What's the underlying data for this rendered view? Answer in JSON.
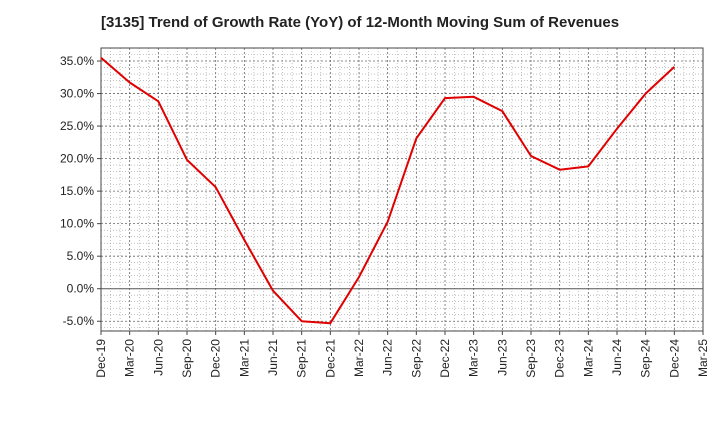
{
  "chart_data": {
    "type": "line",
    "title": "[3135]  Trend of Growth Rate (YoY) of 12-Month Moving Sum of Revenues",
    "xlabel": "",
    "ylabel": "",
    "x_ticks": [
      "Dec-19",
      "Mar-20",
      "Jun-20",
      "Sep-20",
      "Dec-20",
      "Mar-21",
      "Jun-21",
      "Sep-21",
      "Dec-21",
      "Mar-22",
      "Jun-22",
      "Sep-22",
      "Dec-22",
      "Mar-23",
      "Jun-23",
      "Sep-23",
      "Dec-23",
      "Mar-24",
      "Jun-24",
      "Sep-24",
      "Dec-24",
      "Mar-25"
    ],
    "y_ticks": [
      "35.0%",
      "30.0%",
      "25.0%",
      "20.0%",
      "15.0%",
      "10.0%",
      "5.0%",
      "0.0%",
      "-5.0%"
    ],
    "ylim": [
      -6.5,
      37.0
    ],
    "grid": true,
    "series": [
      {
        "color": "#e00000",
        "x": [
          "Dec-19",
          "Mar-20",
          "Jun-20",
          "Sep-20",
          "Dec-20",
          "Mar-21",
          "Jun-21",
          "Sep-21",
          "Dec-21",
          "Mar-22",
          "Jun-22",
          "Sep-22",
          "Dec-22",
          "Mar-23",
          "Jun-23",
          "Sep-23",
          "Dec-23",
          "Mar-24",
          "Jun-24",
          "Sep-24",
          "Dec-24"
        ],
        "values": [
          35.5,
          31.7,
          28.8,
          19.8,
          15.6,
          7.5,
          -0.3,
          -5.0,
          -5.3,
          1.8,
          10.3,
          23.1,
          29.3,
          29.5,
          27.3,
          20.4,
          18.3,
          18.8,
          24.6,
          30.0,
          34.1
        ]
      }
    ]
  }
}
